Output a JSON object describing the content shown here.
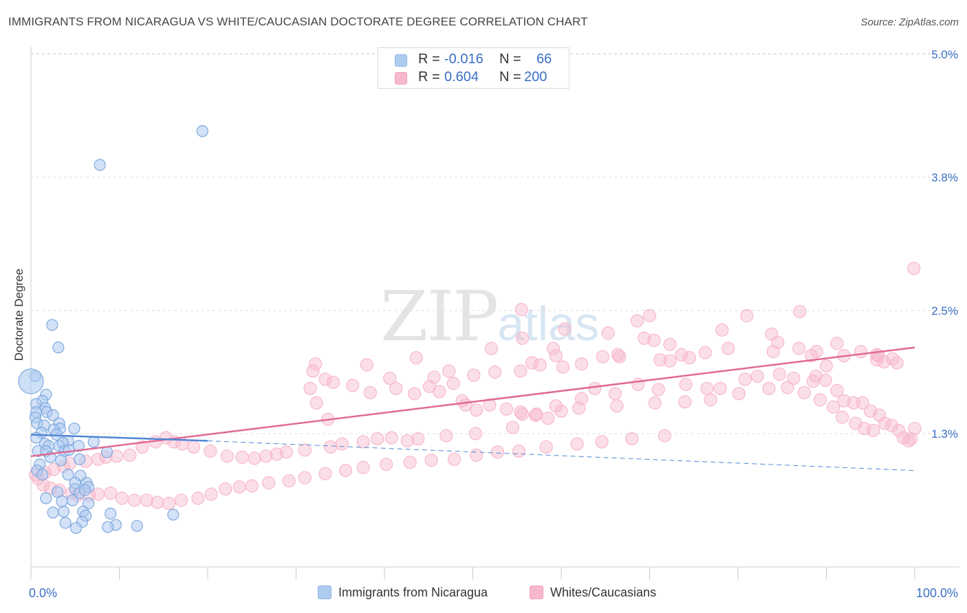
{
  "title": "IMMIGRANTS FROM NICARAGUA VS WHITE/CAUCASIAN DOCTORATE DEGREE CORRELATION CHART",
  "source": "Source: ZipAtlas.com",
  "watermark": {
    "zip": "ZIP",
    "atlas": "atlas"
  },
  "legend": {
    "rows": [
      {
        "r_label": "R =",
        "r_value": "-0.016",
        "n_label": "N =",
        "n_value": "66",
        "color": "#aecbf0"
      },
      {
        "r_label": "R =",
        "r_value": "0.604",
        "n_label": "N =",
        "n_value": "200",
        "color": "#f7b8cc"
      }
    ]
  },
  "bottom_legend": [
    {
      "label": "Immigrants from Nicaragua",
      "color": "#aecbf0"
    },
    {
      "label": "Whites/Caucasians",
      "color": "#f7b8cc"
    }
  ],
  "chart_data": {
    "type": "scatter",
    "title": "IMMIGRANTS FROM NICARAGUA VS WHITE/CAUCASIAN DOCTORATE DEGREE CORRELATION CHART",
    "xlabel": "",
    "ylabel": "Doctorate Degree",
    "xlim": [
      0,
      100
    ],
    "ylim": [
      0.0,
      5.2
    ],
    "x_tick_labels": [
      {
        "x": 0,
        "label": "0.0%"
      },
      {
        "x": 100,
        "label": "100.0%"
      }
    ],
    "y_tick_labels": [
      {
        "y": 1.3,
        "label": "1.3%"
      },
      {
        "y": 2.5,
        "label": "2.5%"
      },
      {
        "y": 3.8,
        "label": "3.8%"
      },
      {
        "y": 5.0,
        "label": "5.0%"
      }
    ],
    "grid": true,
    "colors": {
      "blue": "#4f86d4",
      "blue_fill": "#aecbf0",
      "pink": "#e06a93",
      "pink_fill": "#f7b8cc",
      "axis_label": "#3a6fc4"
    },
    "series": [
      {
        "name": "Immigrants from Nicaragua",
        "color": "#4f86d4",
        "fill": "#aecbf0",
        "trend": {
          "solid": [
            [
              0,
              1.29
            ],
            [
              20,
              1.23
            ]
          ],
          "dashed": [
            [
              20,
              1.23
            ],
            [
              100,
              0.94
            ]
          ]
        },
        "points": [
          [
            19.4,
            4.25
          ],
          [
            7.8,
            3.92
          ],
          [
            2.4,
            2.36
          ],
          [
            3.1,
            2.14
          ],
          [
            0.5,
            1.86
          ],
          [
            0.0,
            1.81
          ],
          [
            1.7,
            1.68
          ],
          [
            1.3,
            1.62
          ],
          [
            0.6,
            1.59
          ],
          [
            1.6,
            1.55
          ],
          [
            0.6,
            1.51
          ],
          [
            1.8,
            1.51
          ],
          [
            2.5,
            1.48
          ],
          [
            0.5,
            1.46
          ],
          [
            0.7,
            1.4
          ],
          [
            1.5,
            1.38
          ],
          [
            3.2,
            1.4
          ],
          [
            3.3,
            1.35
          ],
          [
            4.9,
            1.35
          ],
          [
            2.6,
            1.34
          ],
          [
            1.2,
            1.31
          ],
          [
            2.9,
            1.29
          ],
          [
            0.6,
            1.26
          ],
          [
            1.6,
            1.2
          ],
          [
            2.0,
            1.18
          ],
          [
            3.2,
            1.18
          ],
          [
            5.4,
            1.18
          ],
          [
            4.2,
            1.23
          ],
          [
            3.6,
            1.21
          ],
          [
            7.1,
            1.22
          ],
          [
            8.6,
            1.12
          ],
          [
            0.8,
            1.13
          ],
          [
            1.7,
            1.13
          ],
          [
            3.8,
            1.13
          ],
          [
            4.3,
            1.14
          ],
          [
            2.2,
            1.07
          ],
          [
            5.5,
            1.05
          ],
          [
            3.4,
            1.04
          ],
          [
            1.0,
            1.0
          ],
          [
            0.7,
            0.94
          ],
          [
            1.3,
            0.9
          ],
          [
            4.2,
            0.9
          ],
          [
            5.6,
            0.89
          ],
          [
            5.0,
            0.82
          ],
          [
            6.3,
            0.82
          ],
          [
            5.0,
            0.76
          ],
          [
            6.5,
            0.78
          ],
          [
            3.0,
            0.73
          ],
          [
            5.5,
            0.72
          ],
          [
            6.1,
            0.75
          ],
          [
            1.7,
            0.67
          ],
          [
            3.5,
            0.64
          ],
          [
            4.7,
            0.65
          ],
          [
            6.5,
            0.62
          ],
          [
            2.5,
            0.53
          ],
          [
            3.7,
            0.54
          ],
          [
            5.9,
            0.54
          ],
          [
            6.2,
            0.5
          ],
          [
            9.0,
            0.52
          ],
          [
            16.1,
            0.51
          ],
          [
            3.9,
            0.43
          ],
          [
            5.8,
            0.44
          ],
          [
            9.6,
            0.41
          ],
          [
            12.0,
            0.4
          ],
          [
            8.7,
            0.39
          ],
          [
            5.1,
            0.38
          ]
        ]
      },
      {
        "name": "Whites/Caucasians",
        "color": "#e06a93",
        "fill": "#f7b8cc",
        "trend": {
          "solid": [
            [
              0,
              1.08
            ],
            [
              100,
              2.14
            ]
          ]
        },
        "points": [
          [
            99.9,
            2.91
          ],
          [
            55.5,
            2.51
          ],
          [
            70.0,
            2.45
          ],
          [
            68.6,
            2.4
          ],
          [
            81.0,
            2.45
          ],
          [
            87.0,
            2.49
          ],
          [
            69.4,
            2.23
          ],
          [
            74.5,
            2.04
          ],
          [
            78.2,
            2.31
          ],
          [
            83.8,
            2.27
          ],
          [
            86.9,
            2.13
          ],
          [
            88.3,
            2.06
          ],
          [
            93.9,
            2.1
          ],
          [
            55.6,
            2.23
          ],
          [
            60.4,
            2.32
          ],
          [
            65.3,
            2.28
          ],
          [
            70.5,
            2.21
          ],
          [
            72.3,
            2.17
          ],
          [
            52.1,
            2.13
          ],
          [
            78.9,
            2.13
          ],
          [
            84.5,
            2.19
          ],
          [
            91.2,
            2.18
          ],
          [
            92.0,
            2.06
          ],
          [
            95.7,
            2.02
          ],
          [
            95.7,
            2.07
          ],
          [
            96.5,
            2.0
          ],
          [
            98.0,
            1.99
          ],
          [
            97.5,
            2.03
          ],
          [
            95.9,
            2.06
          ],
          [
            90.0,
            1.96
          ],
          [
            88.9,
            2.1
          ],
          [
            84.0,
            2.1
          ],
          [
            76.3,
            2.09
          ],
          [
            73.6,
            2.07
          ],
          [
            72.3,
            2.01
          ],
          [
            71.2,
            2.02
          ],
          [
            66.6,
            2.05
          ],
          [
            66.4,
            2.07
          ],
          [
            64.7,
            2.05
          ],
          [
            62.3,
            1.98
          ],
          [
            60.2,
            1.95
          ],
          [
            59.4,
            2.06
          ],
          [
            57.6,
            1.97
          ],
          [
            56.7,
            1.99
          ],
          [
            59.1,
            2.13
          ],
          [
            55.4,
            1.91
          ],
          [
            52.5,
            1.9
          ],
          [
            50.1,
            1.87
          ],
          [
            47.3,
            1.91
          ],
          [
            45.6,
            1.85
          ],
          [
            43.6,
            2.04
          ],
          [
            38.0,
            1.97
          ],
          [
            32.2,
            1.98
          ],
          [
            31.9,
            1.91
          ],
          [
            34.2,
            1.8
          ],
          [
            33.3,
            1.83
          ],
          [
            31.6,
            1.74
          ],
          [
            32.3,
            1.6
          ],
          [
            33.6,
            1.44
          ],
          [
            36.4,
            1.77
          ],
          [
            38.4,
            1.7
          ],
          [
            40.6,
            1.84
          ],
          [
            41.3,
            1.74
          ],
          [
            43.4,
            1.69
          ],
          [
            45.1,
            1.76
          ],
          [
            46.2,
            1.71
          ],
          [
            47.8,
            1.79
          ],
          [
            48.8,
            1.62
          ],
          [
            49.2,
            1.58
          ],
          [
            50.4,
            1.53
          ],
          [
            51.9,
            1.58
          ],
          [
            53.8,
            1.54
          ],
          [
            55.4,
            1.51
          ],
          [
            55.6,
            1.49
          ],
          [
            57.1,
            1.48
          ],
          [
            57.2,
            1.49
          ],
          [
            59.4,
            1.57
          ],
          [
            60.0,
            1.52
          ],
          [
            62.3,
            1.64
          ],
          [
            63.8,
            1.74
          ],
          [
            66.1,
            1.69
          ],
          [
            68.7,
            1.78
          ],
          [
            71.0,
            1.73
          ],
          [
            74.1,
            1.78
          ],
          [
            76.5,
            1.74
          ],
          [
            78.0,
            1.74
          ],
          [
            80.8,
            1.83
          ],
          [
            82.2,
            1.86
          ],
          [
            84.7,
            1.88
          ],
          [
            86.3,
            1.84
          ],
          [
            88.5,
            1.81
          ],
          [
            88.8,
            1.86
          ],
          [
            89.9,
            1.82
          ],
          [
            91.2,
            1.72
          ],
          [
            92.0,
            1.62
          ],
          [
            93.1,
            1.6
          ],
          [
            94.1,
            1.6
          ],
          [
            95.0,
            1.52
          ],
          [
            96.0,
            1.48
          ],
          [
            96.6,
            1.4
          ],
          [
            97.4,
            1.38
          ],
          [
            98.2,
            1.33
          ],
          [
            98.7,
            1.26
          ],
          [
            99.6,
            1.25
          ],
          [
            100.0,
            1.35
          ],
          [
            99.3,
            1.23
          ],
          [
            95.3,
            1.33
          ],
          [
            94.3,
            1.35
          ],
          [
            93.3,
            1.4
          ],
          [
            91.8,
            1.46
          ],
          [
            90.8,
            1.56
          ],
          [
            89.3,
            1.63
          ],
          [
            87.5,
            1.7
          ],
          [
            85.6,
            1.75
          ],
          [
            83.5,
            1.74
          ],
          [
            80.1,
            1.69
          ],
          [
            76.9,
            1.63
          ],
          [
            74.0,
            1.61
          ],
          [
            70.6,
            1.6
          ],
          [
            66.3,
            1.57
          ],
          [
            62.0,
            1.55
          ],
          [
            58.5,
            1.45
          ],
          [
            54.5,
            1.36
          ],
          [
            50.3,
            1.3
          ],
          [
            47.0,
            1.28
          ],
          [
            43.8,
            1.25
          ],
          [
            42.6,
            1.23
          ],
          [
            40.8,
            1.26
          ],
          [
            39.2,
            1.25
          ],
          [
            37.6,
            1.22
          ],
          [
            35.2,
            1.2
          ],
          [
            33.9,
            1.17
          ],
          [
            31.0,
            1.14
          ],
          [
            28.9,
            1.12
          ],
          [
            27.8,
            1.1
          ],
          [
            26.6,
            1.08
          ],
          [
            25.3,
            1.06
          ],
          [
            23.9,
            1.07
          ],
          [
            22.2,
            1.08
          ],
          [
            20.3,
            1.13
          ],
          [
            18.4,
            1.17
          ],
          [
            17.1,
            1.2
          ],
          [
            16.2,
            1.22
          ],
          [
            15.3,
            1.26
          ],
          [
            14.1,
            1.22
          ],
          [
            12.6,
            1.17
          ],
          [
            11.2,
            1.09
          ],
          [
            9.7,
            1.08
          ],
          [
            8.5,
            1.07
          ],
          [
            7.6,
            1.05
          ],
          [
            6.2,
            1.03
          ],
          [
            4.4,
            1.01
          ],
          [
            3.7,
            0.98
          ],
          [
            2.6,
            0.95
          ],
          [
            1.6,
            0.92
          ],
          [
            0.5,
            0.9
          ],
          [
            0.8,
            0.86
          ],
          [
            1.4,
            0.8
          ],
          [
            2.2,
            0.77
          ],
          [
            3.2,
            0.75
          ],
          [
            4.6,
            0.72
          ],
          [
            5.3,
            0.7
          ],
          [
            6.6,
            0.7
          ],
          [
            7.6,
            0.71
          ],
          [
            9.0,
            0.72
          ],
          [
            10.3,
            0.67
          ],
          [
            11.7,
            0.65
          ],
          [
            13.1,
            0.65
          ],
          [
            14.3,
            0.63
          ],
          [
            15.6,
            0.62
          ],
          [
            17.0,
            0.65
          ],
          [
            18.9,
            0.67
          ],
          [
            20.4,
            0.71
          ],
          [
            22.0,
            0.76
          ],
          [
            23.6,
            0.78
          ],
          [
            25.0,
            0.79
          ],
          [
            26.9,
            0.82
          ],
          [
            29.2,
            0.84
          ],
          [
            31.0,
            0.87
          ],
          [
            33.3,
            0.91
          ],
          [
            35.6,
            0.94
          ],
          [
            37.6,
            0.97
          ],
          [
            40.2,
            1.0
          ],
          [
            42.9,
            1.02
          ],
          [
            45.3,
            1.04
          ],
          [
            47.9,
            1.05
          ],
          [
            50.4,
            1.09
          ],
          [
            52.8,
            1.12
          ],
          [
            55.2,
            1.13
          ],
          [
            58.3,
            1.17
          ],
          [
            61.8,
            1.2
          ],
          [
            64.6,
            1.22
          ],
          [
            68.0,
            1.25
          ],
          [
            71.7,
            1.28
          ]
        ]
      }
    ]
  }
}
